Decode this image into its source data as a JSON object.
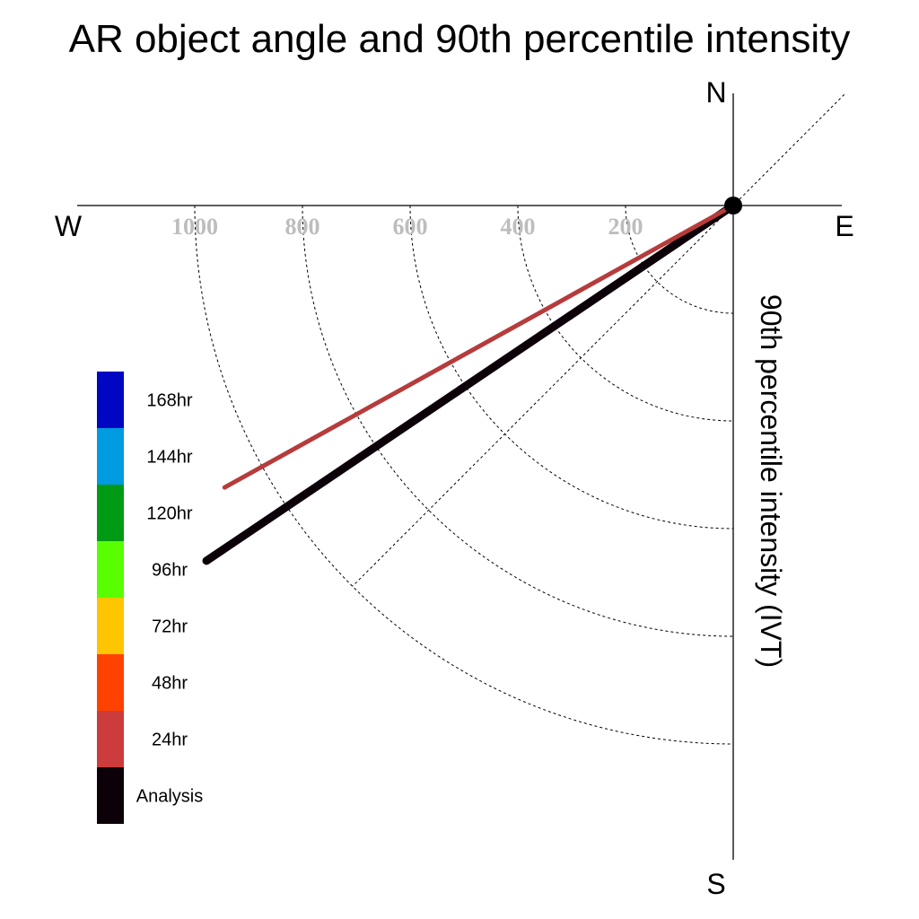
{
  "chart_data": {
    "type": "polar-vector",
    "title": "AR object angle and 90th percentile intensity",
    "radial_axis_label": "90th percentile intensity (IVT)",
    "compass_labels": {
      "north": "N",
      "east": "E",
      "south": "S",
      "west": "W"
    },
    "radial_ticks": [
      200,
      400,
      600,
      800,
      1000
    ],
    "radial_range": [
      0,
      1200
    ],
    "grid": true,
    "legend": {
      "placement": "left",
      "entries": [
        {
          "label": "168hr",
          "color": "#0007c2"
        },
        {
          "label": "144hr",
          "color": "#009be0"
        },
        {
          "label": "120hr",
          "color": "#009a14"
        },
        {
          "label": "96hr",
          "color": "#59ff00"
        },
        {
          "label": "72hr",
          "color": "#ffc500"
        },
        {
          "label": "48hr",
          "color": "#ff4200"
        },
        {
          "label": "24hr",
          "color": "#cc3c3c"
        },
        {
          "label": "Analysis",
          "color": "#0c0009"
        }
      ]
    },
    "series": [
      {
        "name": "24hr",
        "color": "#b63c3c",
        "angle_deg": 241,
        "intensity": 1080
      },
      {
        "name": "Analysis",
        "color": "#0c0009",
        "angle_deg": 236,
        "intensity": 1180
      }
    ]
  }
}
